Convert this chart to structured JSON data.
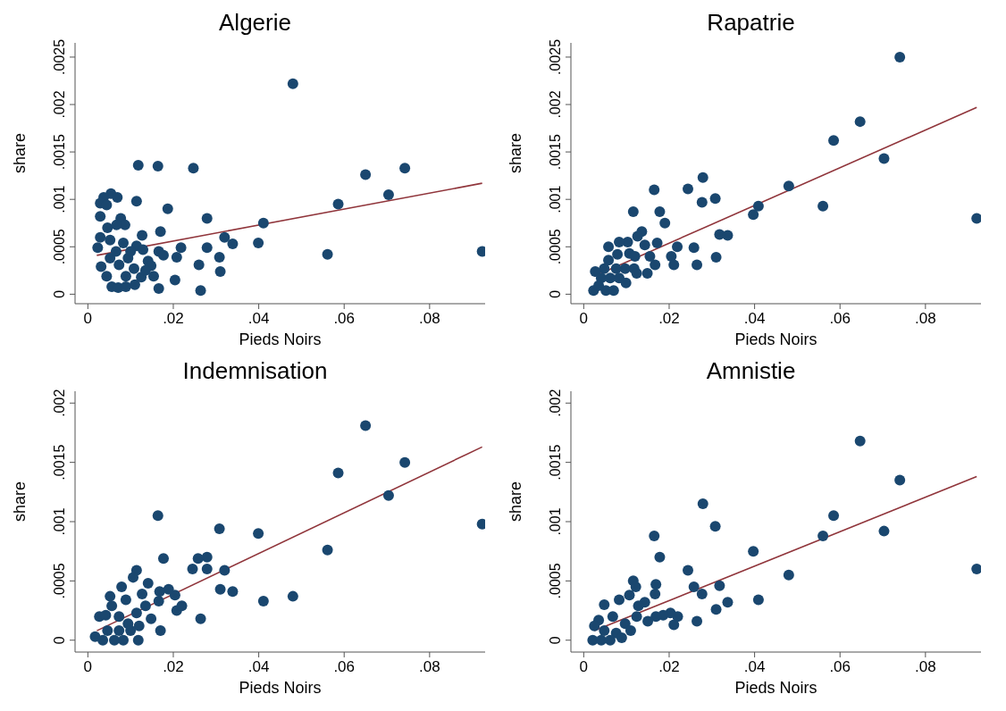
{
  "chart_data": [
    {
      "type": "scatter",
      "title": "Algerie",
      "xlabel": "Pieds Noirs",
      "ylabel": "share",
      "marker": "circle",
      "xlim": [
        -0.003,
        0.093
      ],
      "xticks": [
        {
          "value": 0,
          "label": "0"
        },
        {
          "value": 0.02,
          "label": ".02"
        },
        {
          "value": 0.04,
          "label": ".04"
        },
        {
          "value": 0.06,
          "label": ".06"
        },
        {
          "value": 0.08,
          "label": ".08"
        }
      ],
      "ylim": [
        -0.0001,
        0.00265
      ],
      "yticks": [
        {
          "value": 0,
          "label": "0"
        },
        {
          "value": 0.0005,
          "label": ".0005"
        },
        {
          "value": 0.001,
          "label": ".001"
        },
        {
          "value": 0.0015,
          "label": ".0015"
        },
        {
          "value": 0.002,
          "label": ".002"
        },
        {
          "value": 0.0025,
          "label": ".0025"
        }
      ],
      "series": [
        {
          "color": "#1a476f",
          "x": [
            0.048,
            0.0118,
            0.0164,
            0.0247,
            0.065,
            0.0742,
            0.0704,
            0.0586,
            0.0561,
            0.0923,
            0.0411,
            0.0399,
            0.032,
            0.0339,
            0.0279,
            0.0279,
            0.0308,
            0.031,
            0.026,
            0.0264,
            0.0204,
            0.0218,
            0.0208,
            0.0187,
            0.017,
            0.0166,
            0.0177,
            0.0154,
            0.0166,
            0.0114,
            0.0127,
            0.0054,
            0.0069,
            0.0037,
            0.0029,
            0.0044,
            0.0029,
            0.0046,
            0.0077,
            0.0087,
            0.0067,
            0.0029,
            0.0023,
            0.0052,
            0.0083,
            0.0114,
            0.0129,
            0.0031,
            0.0044,
            0.0056,
            0.0071,
            0.0089,
            0.011,
            0.0125,
            0.0141,
            0.0148,
            0.0135,
            0.0089,
            0.0108,
            0.0073,
            0.0052,
            0.0094,
            0.0066,
            0.01
          ],
          "values": [
            0.00222,
            0.00136,
            0.00135,
            0.00133,
            0.00126,
            0.00133,
            0.00105,
            0.00095,
            0.00042,
            0.00045,
            0.00075,
            0.00054,
            0.0006,
            0.00053,
            0.0008,
            0.00049,
            0.00039,
            0.00024,
            0.00031,
            4e-05,
            0.00015,
            0.00049,
            0.00039,
            0.0009,
            0.00066,
            0.00045,
            0.00041,
            0.00019,
            6e-05,
            0.00098,
            0.00062,
            0.00106,
            0.00102,
            0.00102,
            0.00096,
            0.00094,
            0.00082,
            0.0007,
            0.0008,
            0.00073,
            0.00073,
            0.0006,
            0.00049,
            0.00057,
            0.00054,
            0.00051,
            0.00047,
            0.00029,
            0.00019,
            8e-05,
            7e-05,
            8e-05,
            0.0001,
            0.00018,
            0.00035,
            0.0003,
            0.00025,
            0.00019,
            0.00027,
            0.00031,
            0.00038,
            0.00038,
            0.00045,
            0.00045
          ]
        },
        {
          "type": "line",
          "color": "#90353b",
          "marker": "none",
          "x": [
            0.0021,
            0.0923
          ],
          "values": [
            0.00041,
            0.00117
          ]
        }
      ]
    },
    {
      "type": "scatter",
      "title": "Rapatrie",
      "xlabel": "Pieds Noirs",
      "ylabel": "share",
      "marker": "circle",
      "xlim": [
        -0.003,
        0.093
      ],
      "xticks": [
        {
          "value": 0,
          "label": "0"
        },
        {
          "value": 0.02,
          "label": ".02"
        },
        {
          "value": 0.04,
          "label": ".04"
        },
        {
          "value": 0.06,
          "label": ".06"
        },
        {
          "value": 0.08,
          "label": ".08"
        }
      ],
      "ylim": [
        -0.0001,
        0.00265
      ],
      "yticks": [
        {
          "value": 0,
          "label": "0"
        },
        {
          "value": 0.0005,
          "label": ".0005"
        },
        {
          "value": 0.001,
          "label": ".001"
        },
        {
          "value": 0.0015,
          "label": ".0015"
        },
        {
          "value": 0.002,
          "label": ".002"
        },
        {
          "value": 0.0025,
          "label": ".0025"
        }
      ],
      "series": [
        {
          "color": "#1a476f",
          "x": [
            0.074,
            0.0647,
            0.0585,
            0.0703,
            0.056,
            0.092,
            0.048,
            0.0409,
            0.0397,
            0.0279,
            0.0244,
            0.0165,
            0.0277,
            0.0308,
            0.0116,
            0.0178,
            0.019,
            0.0318,
            0.0337,
            0.0219,
            0.0258,
            0.031,
            0.0265,
            0.0205,
            0.0211,
            0.0167,
            0.0149,
            0.0155,
            0.0172,
            0.0136,
            0.0126,
            0.0143,
            0.0103,
            0.0083,
            0.0058,
            0.0079,
            0.0058,
            0.0107,
            0.012,
            0.0118,
            0.0097,
            0.0076,
            0.0048,
            0.0027,
            0.0041,
            0.0062,
            0.0083,
            0.0099,
            0.0023,
            0.0052,
            0.007,
            0.0035,
            0.0124
          ],
          "values": [
            0.0025,
            0.00182,
            0.00162,
            0.00143,
            0.00093,
            0.0008,
            0.00114,
            0.00093,
            0.00084,
            0.00123,
            0.00111,
            0.0011,
            0.00097,
            0.00101,
            0.00087,
            0.00087,
            0.00075,
            0.00063,
            0.00062,
            0.0005,
            0.00049,
            0.00039,
            0.00031,
            0.0004,
            0.00031,
            0.00031,
            0.00022,
            0.0004,
            0.00054,
            0.00066,
            0.00061,
            0.00052,
            0.00055,
            0.00055,
            0.0005,
            0.00042,
            0.00036,
            0.00043,
            0.0004,
            0.00027,
            0.00027,
            0.00027,
            0.00027,
            0.00024,
            0.00017,
            0.00017,
            0.00017,
            0.00012,
            4e-05,
            4e-05,
            4e-05,
            9e-05,
            0.00022
          ]
        },
        {
          "type": "line",
          "color": "#90353b",
          "marker": "none",
          "x": [
            0.0025,
            0.092
          ],
          "values": [
            0.00019,
            0.00197
          ]
        }
      ]
    },
    {
      "type": "scatter",
      "title": "Indemnisation",
      "xlabel": "Pieds Noirs",
      "ylabel": "share",
      "marker": "circle",
      "xlim": [
        -0.003,
        0.093
      ],
      "xticks": [
        {
          "value": 0,
          "label": "0"
        },
        {
          "value": 0.02,
          "label": ".02"
        },
        {
          "value": 0.04,
          "label": ".04"
        },
        {
          "value": 0.06,
          "label": ".06"
        },
        {
          "value": 0.08,
          "label": ".08"
        }
      ],
      "ylim": [
        -0.0001,
        0.0021
      ],
      "yticks": [
        {
          "value": 0,
          "label": "0"
        },
        {
          "value": 0.0005,
          "label": ".0005"
        },
        {
          "value": 0.001,
          "label": ".001"
        },
        {
          "value": 0.0015,
          "label": ".0015"
        },
        {
          "value": 0.002,
          "label": ".002"
        }
      ],
      "series": [
        {
          "color": "#1a476f",
          "x": [
            0.065,
            0.0742,
            0.0586,
            0.0704,
            0.0923,
            0.0164,
            0.0308,
            0.0399,
            0.0561,
            0.0177,
            0.0258,
            0.0279,
            0.0245,
            0.0279,
            0.032,
            0.031,
            0.0339,
            0.0411,
            0.048,
            0.0264,
            0.0208,
            0.022,
            0.0204,
            0.0189,
            0.0168,
            0.0166,
            0.0148,
            0.017,
            0.0141,
            0.0114,
            0.0106,
            0.0127,
            0.0135,
            0.0079,
            0.0052,
            0.0089,
            0.0056,
            0.0114,
            0.0027,
            0.0042,
            0.0073,
            0.0094,
            0.012,
            0.0017,
            0.0035,
            0.0062,
            0.0083,
            0.0118,
            0.0046,
            0.0073,
            0.01
          ],
          "values": [
            0.00181,
            0.0015,
            0.00141,
            0.00122,
            0.00098,
            0.00105,
            0.00094,
            0.0009,
            0.00076,
            0.00069,
            0.00069,
            0.0007,
            0.0006,
            0.0006,
            0.00059,
            0.00043,
            0.00041,
            0.00033,
            0.00037,
            0.00018,
            0.00025,
            0.00029,
            0.00038,
            0.00043,
            0.00041,
            0.00033,
            0.00018,
            8e-05,
            0.00048,
            0.00059,
            0.00053,
            0.00039,
            0.00029,
            0.00045,
            0.00037,
            0.00034,
            0.00029,
            0.00023,
            0.0002,
            0.00021,
            0.0002,
            0.00014,
            0.00012,
            3e-05,
            0,
            0,
            0,
            0,
            8e-05,
            8e-05,
            8e-05
          ]
        },
        {
          "type": "line",
          "color": "#90353b",
          "marker": "none",
          "x": [
            0.0021,
            0.0923
          ],
          "values": [
            8e-05,
            0.00163
          ]
        }
      ]
    },
    {
      "type": "scatter",
      "title": "Amnistie",
      "xlabel": "Pieds Noirs",
      "ylabel": "share",
      "marker": "circle",
      "xlim": [
        -0.003,
        0.093
      ],
      "xticks": [
        {
          "value": 0,
          "label": "0"
        },
        {
          "value": 0.02,
          "label": ".02"
        },
        {
          "value": 0.04,
          "label": ".04"
        },
        {
          "value": 0.06,
          "label": ".06"
        },
        {
          "value": 0.08,
          "label": ".08"
        }
      ],
      "ylim": [
        -0.0001,
        0.0021
      ],
      "yticks": [
        {
          "value": 0,
          "label": "0"
        },
        {
          "value": 0.0005,
          "label": ".0005"
        },
        {
          "value": 0.001,
          "label": ".001"
        },
        {
          "value": 0.0015,
          "label": ".0015"
        },
        {
          "value": 0.002,
          "label": ".002"
        }
      ],
      "series": [
        {
          "color": "#1a476f",
          "x": [
            0.0647,
            0.074,
            0.0585,
            0.0703,
            0.056,
            0.092,
            0.048,
            0.0397,
            0.0409,
            0.0279,
            0.0308,
            0.0165,
            0.0178,
            0.0244,
            0.0258,
            0.0277,
            0.0318,
            0.0337,
            0.031,
            0.0265,
            0.0116,
            0.0122,
            0.0107,
            0.0169,
            0.0167,
            0.0143,
            0.0128,
            0.0083,
            0.0048,
            0.022,
            0.0203,
            0.0211,
            0.0186,
            0.0169,
            0.015,
            0.0124,
            0.0097,
            0.0068,
            0.0035,
            0.0025,
            0.0048,
            0.0076,
            0.0021,
            0.0041,
            0.0062,
            0.0089,
            0.011
          ],
          "values": [
            0.00168,
            0.00135,
            0.00105,
            0.00092,
            0.00088,
            0.0006,
            0.00055,
            0.00075,
            0.00034,
            0.00115,
            0.00096,
            0.00088,
            0.0007,
            0.00059,
            0.00045,
            0.00039,
            0.00046,
            0.00032,
            0.00026,
            0.00016,
            0.0005,
            0.00045,
            0.00038,
            0.00047,
            0.00039,
            0.00032,
            0.00029,
            0.00034,
            0.0003,
            0.0002,
            0.00023,
            0.00013,
            0.00021,
            0.0002,
            0.00016,
            0.0002,
            0.00014,
            0.0002,
            0.00017,
            0.00012,
            8e-05,
            6e-05,
            0,
            0,
            0,
            2e-05,
            8e-05
          ]
        },
        {
          "type": "line",
          "color": "#90353b",
          "marker": "none",
          "x": [
            0.0025,
            0.092
          ],
          "values": [
            8e-05,
            0.00138
          ]
        }
      ]
    }
  ]
}
